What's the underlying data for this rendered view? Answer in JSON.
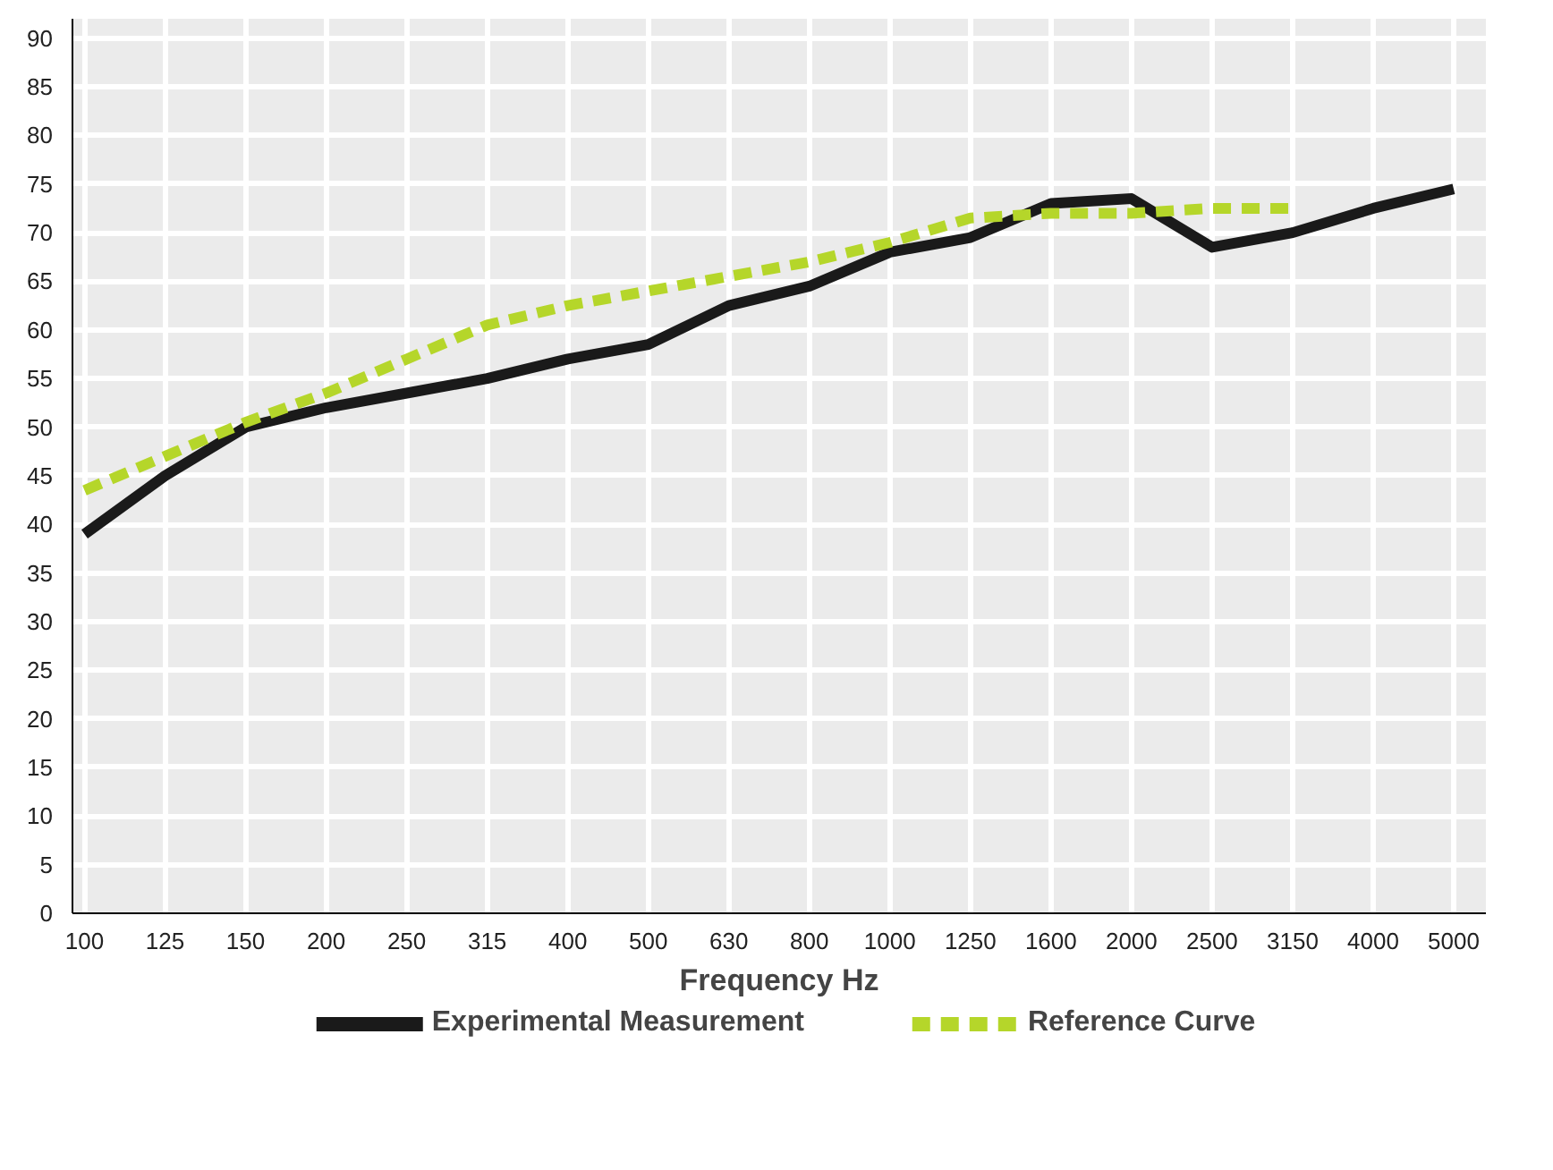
{
  "chart_data": {
    "type": "line",
    "xlabel": "Frequency Hz",
    "categories": [
      "100",
      "125",
      "150",
      "200",
      "250",
      "315",
      "400",
      "500",
      "630",
      "800",
      "1000",
      "1250",
      "1600",
      "2000",
      "2500",
      "3150",
      "4000",
      "5000"
    ],
    "series": [
      {
        "name": "Experimental Measurement",
        "color": "#1a1a1a",
        "line_style": "solid",
        "values": [
          39,
          45,
          50,
          52,
          53.5,
          55,
          57,
          58.5,
          62.5,
          64.5,
          68,
          69.5,
          73,
          73.5,
          68.5,
          70,
          72.5,
          74.5
        ]
      },
      {
        "name": "Reference Curve",
        "color": "#b5d62a",
        "line_style": "dashed",
        "values": [
          43.5,
          47,
          50.5,
          53.5,
          57,
          60.5,
          62.5,
          64,
          65.5,
          67,
          69,
          71.5,
          72,
          72,
          72.5,
          72.5,
          null,
          null
        ]
      }
    ],
    "ylim": [
      0,
      92
    ],
    "yticks": [
      0,
      5,
      10,
      15,
      20,
      25,
      30,
      35,
      40,
      45,
      50,
      55,
      60,
      65,
      70,
      75,
      80,
      85,
      90
    ],
    "grid": true,
    "legend": "bottom"
  }
}
